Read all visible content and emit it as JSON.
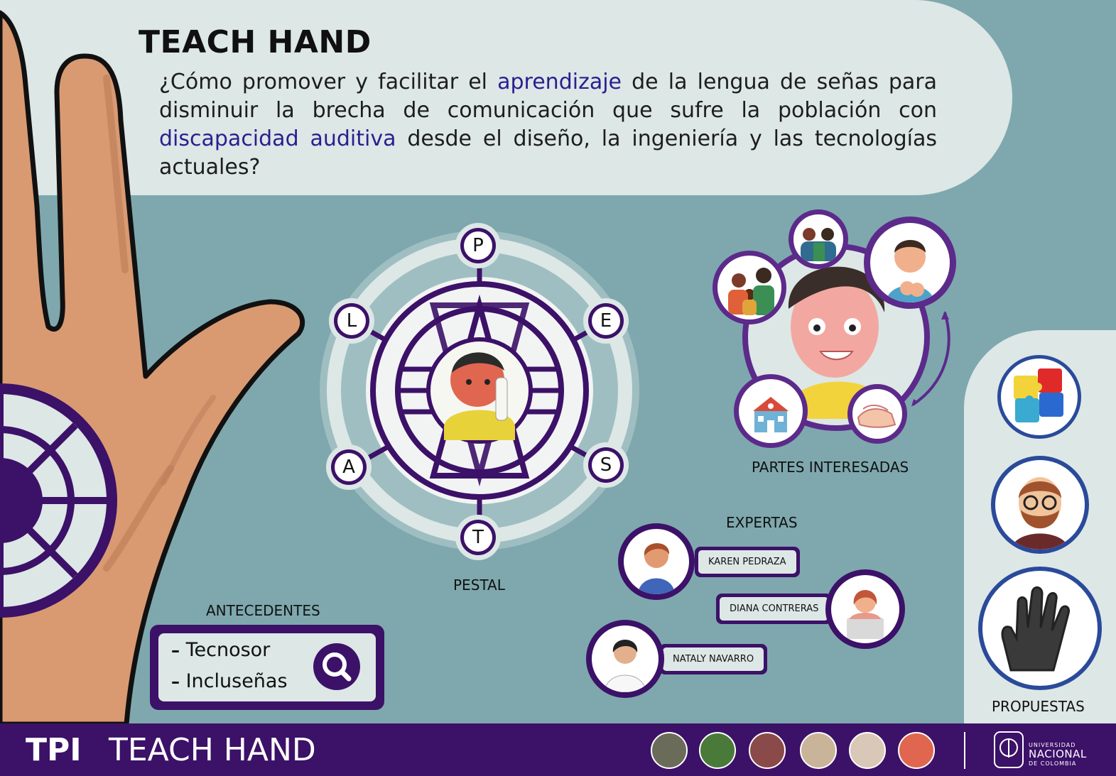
{
  "title": "TEACH HAND",
  "question": {
    "p1": "¿Cómo promover y facilitar el ",
    "h1": "aprendizaje",
    "p2": " de la lengua de señas para disminuir la brecha de comunicación que sufre la población con ",
    "h2": "discapacidad auditiva",
    "p3": " desde el diseño, la ingeniería y las tecnologías actuales?"
  },
  "pestal": {
    "letters": [
      "P",
      "E",
      "S",
      "T",
      "A",
      "L"
    ],
    "caption": "PESTAL"
  },
  "antecedentes": {
    "title": "ANTECEDENTES",
    "items": [
      "Tecnosor",
      "Incluseñas"
    ]
  },
  "partes": {
    "caption": "PARTES INTERESADAS"
  },
  "expertas": {
    "title": "EXPERTAS",
    "names": [
      "KAREN PEDRAZA",
      "DIANA CONTRERAS",
      "NATALY NAVARRO"
    ]
  },
  "propuestas": {
    "caption": "PROPUESTAS"
  },
  "footer": {
    "tpi": "TPI",
    "title": "TEACH HAND",
    "university": {
      "line1": "UNIVERSIDAD",
      "line2": "NACIONAL",
      "line3": "DE COLOMBIA"
    }
  },
  "colors": {
    "background": "#7ea8ae",
    "panel": "#dde7e6",
    "purple": "#3c1168",
    "highlight": "#2a1f8f",
    "skin": "#d99a72"
  },
  "icons": [
    "search-icon",
    "puzzle-icon",
    "bearded-man-icon",
    "glove-icon"
  ]
}
